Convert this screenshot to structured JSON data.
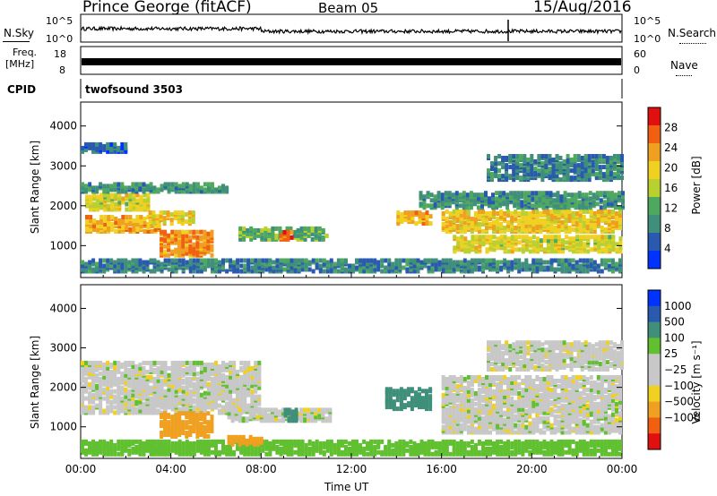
{
  "header": {
    "station": "Prince George (fitACF)",
    "beam": "Beam 05",
    "date": "15/Aug/2016"
  },
  "nsky_panel": {
    "label": "N.Sky",
    "ticks_left": [
      "10^5",
      "10^0"
    ],
    "right_label": "N.Search",
    "ticks_right": [
      "10^5",
      "10^0"
    ]
  },
  "freq_panel": {
    "label_line1": "Freq.",
    "label_line2": "[MHz]",
    "ticks_left": [
      "18",
      "8"
    ],
    "right_label": "Nave",
    "ticks_right": [
      "60",
      "0"
    ]
  },
  "cpid_panel": {
    "label": "CPID",
    "value": "twofsound 3503"
  },
  "colors": {
    "power_scale": [
      "#0033ff",
      "#2a59b0",
      "#3f8f7a",
      "#4ea860",
      "#b8d030",
      "#f0d020",
      "#f0a020",
      "#f06010",
      "#e01010"
    ],
    "velocity_scale": [
      "#e01010",
      "#f06010",
      "#f0a020",
      "#f0d020",
      "#c8c8c8",
      "#c8c8c8",
      "#60c030",
      "#3f8f7a",
      "#2a59b0",
      "#0033ff"
    ]
  },
  "chart_data": [
    {
      "type": "heatmap",
      "name": "Power",
      "ylabel": "Slant Range [km]",
      "yticks": [
        "1000",
        "2000",
        "3000",
        "4000"
      ],
      "ylim": [
        200,
        4600
      ],
      "colorbar_label": "Power [dB]",
      "colorbar_ticks": [
        "4",
        "8",
        "12",
        "16",
        "20",
        "24",
        "28"
      ],
      "colorbar_range": [
        0,
        32
      ],
      "regions": [
        {
          "t0": 0.2,
          "t1": 3.5,
          "r0": 1300,
          "r1": 1700,
          "level": 22
        },
        {
          "t0": 0.2,
          "t1": 3.0,
          "r0": 1850,
          "r1": 2250,
          "level": 18
        },
        {
          "t0": 0.0,
          "t1": 6.5,
          "r0": 2300,
          "r1": 2500,
          "level": 10
        },
        {
          "t0": 3.5,
          "t1": 5.8,
          "r0": 700,
          "r1": 1300,
          "level": 24
        },
        {
          "t0": 3.0,
          "t1": 5.0,
          "r0": 1500,
          "r1": 1800,
          "level": 20
        },
        {
          "t0": 7.0,
          "t1": 11.0,
          "r0": 1100,
          "r1": 1400,
          "level": 12
        },
        {
          "t0": 8.8,
          "t1": 9.4,
          "r0": 1100,
          "r1": 1300,
          "level": 26
        },
        {
          "t0": 0.0,
          "t1": 24.0,
          "r0": 300,
          "r1": 600,
          "level": 8
        },
        {
          "t0": 14.0,
          "t1": 15.5,
          "r0": 1500,
          "r1": 1800,
          "level": 22
        },
        {
          "t0": 16.0,
          "t1": 24.0,
          "r0": 1300,
          "r1": 1800,
          "level": 20
        },
        {
          "t0": 16.5,
          "t1": 24.0,
          "r0": 800,
          "r1": 1200,
          "level": 18
        },
        {
          "t0": 15.0,
          "t1": 24.0,
          "r0": 1900,
          "r1": 2300,
          "level": 10
        },
        {
          "t0": 18.0,
          "t1": 24.0,
          "r0": 2600,
          "r1": 3200,
          "level": 8
        },
        {
          "t0": 0.0,
          "t1": 2.0,
          "r0": 3300,
          "r1": 3500,
          "level": 6
        }
      ]
    },
    {
      "type": "heatmap",
      "name": "Velocity",
      "ylabel": "Slant Range [km]",
      "yticks": [
        "1000",
        "2000",
        "3000",
        "4000"
      ],
      "ylim": [
        200,
        4600
      ],
      "xlabel": "Time UT",
      "xticks": [
        "00:00",
        "04:00",
        "08:00",
        "12:00",
        "16:00",
        "20:00",
        "00:00"
      ],
      "xlim": [
        0,
        24
      ],
      "colorbar_label": "Velocity [m s⁻¹]",
      "colorbar_ticks": [
        "1000",
        "500",
        "100",
        "25",
        "−25",
        "−100",
        "−500",
        "−1000"
      ],
      "regions": [
        {
          "t0": 0.0,
          "t1": 8.0,
          "r0": 1300,
          "r1": 2600,
          "vel": 0
        },
        {
          "t0": 3.5,
          "t1": 5.8,
          "r0": 700,
          "r1": 1300,
          "vel": -300
        },
        {
          "t0": 6.5,
          "t1": 11.0,
          "r0": 1100,
          "r1": 1400,
          "vel": 0
        },
        {
          "t0": 9.0,
          "t1": 9.6,
          "r0": 1100,
          "r1": 1400,
          "vel": 200
        },
        {
          "t0": 13.5,
          "t1": 15.5,
          "r0": 1400,
          "r1": 1900,
          "vel": 400
        },
        {
          "t0": 16.0,
          "t1": 24.0,
          "r0": 800,
          "r1": 2200,
          "vel": 0
        },
        {
          "t0": 18.0,
          "t1": 24.0,
          "r0": 2400,
          "r1": 3100,
          "vel": 0
        },
        {
          "t0": 0.0,
          "t1": 24.0,
          "r0": 250,
          "r1": 600,
          "vel": 60
        },
        {
          "t0": 6.5,
          "t1": 8.0,
          "r0": 500,
          "r1": 700,
          "vel": -200
        }
      ]
    }
  ]
}
